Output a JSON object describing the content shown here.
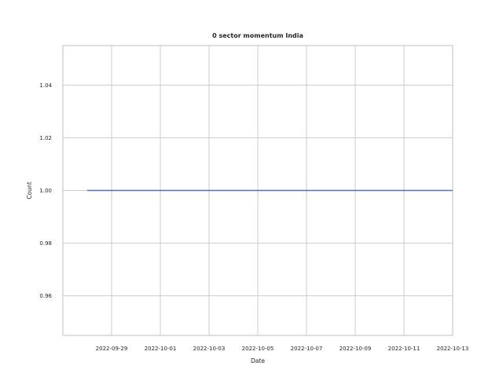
{
  "chart_data": {
    "type": "line",
    "title": "0 sector momentum India",
    "xlabel": "Date",
    "ylabel": "Count",
    "x": [
      "2022-09-28",
      "2022-10-13"
    ],
    "series": [
      {
        "values": [
          1.0,
          1.0
        ],
        "color": "#4c72b0"
      }
    ],
    "xlim": [
      "2022-09-27",
      "2022-10-13"
    ],
    "ylim": [
      0.945,
      1.055
    ],
    "xticks": [
      "2022-09-29",
      "2022-10-01",
      "2022-10-03",
      "2022-10-05",
      "2022-10-07",
      "2022-10-09",
      "2022-10-11",
      "2022-10-13"
    ],
    "yticks": [
      0.96,
      0.98,
      1.0,
      1.02,
      1.04
    ],
    "ytick_labels": [
      "0.96",
      "0.98",
      "1.00",
      "1.02",
      "1.04"
    ],
    "grid": true,
    "legend": "none"
  }
}
